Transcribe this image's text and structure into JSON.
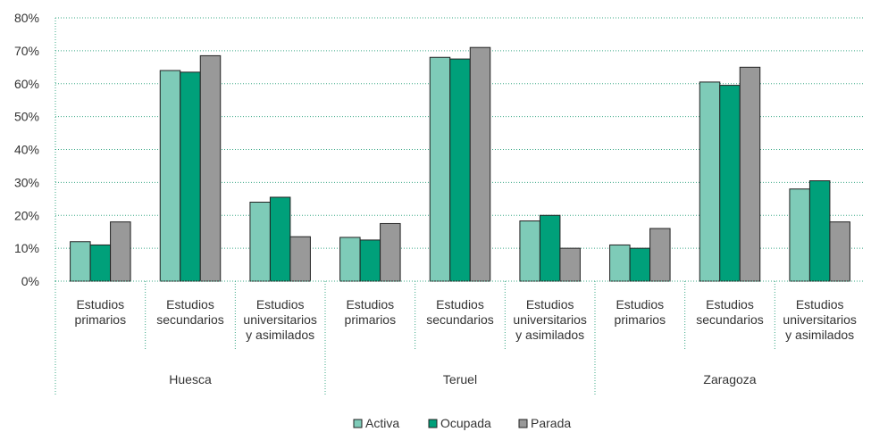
{
  "chart_data": {
    "type": "bar",
    "groups": [
      {
        "label": "Huesca",
        "categories": [
          [
            "Estudios",
            "primarios"
          ],
          [
            "Estudios",
            "secundarios"
          ],
          [
            "Estudios",
            "universitarios",
            "y asimilados"
          ]
        ]
      },
      {
        "label": "Teruel",
        "categories": [
          [
            "Estudios",
            "primarios"
          ],
          [
            "Estudios",
            "secundarios"
          ],
          [
            "Estudios",
            "universitarios",
            "y asimilados"
          ]
        ]
      },
      {
        "label": "Zaragoza",
        "categories": [
          [
            "Estudios",
            "primarios"
          ],
          [
            "Estudios",
            "secundarios"
          ],
          [
            "Estudios",
            "universitarios",
            "y asimilados"
          ]
        ]
      }
    ],
    "series": [
      {
        "name": "Activa",
        "color": "#7ecbb8",
        "values": [
          12,
          64,
          24,
          13.3,
          68,
          18.3,
          11,
          60.5,
          28
        ]
      },
      {
        "name": "Ocupada",
        "color": "#00a07a",
        "values": [
          11,
          63.5,
          25.5,
          12.5,
          67.5,
          20,
          10,
          59.5,
          30.5
        ]
      },
      {
        "name": "Parada",
        "color": "#999999",
        "values": [
          18,
          68.5,
          13.5,
          17.5,
          71,
          10,
          16,
          65,
          18
        ]
      }
    ],
    "yticks": [
      "0%",
      "10%",
      "20%",
      "30%",
      "40%",
      "50%",
      "60%",
      "70%",
      "80%"
    ],
    "ylim": [
      0,
      80
    ],
    "grid": true,
    "legend": "bottom-center"
  }
}
